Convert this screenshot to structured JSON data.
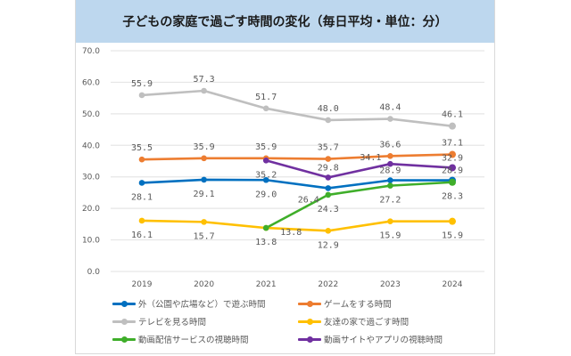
{
  "chart_data": {
    "type": "line",
    "title": "子どもの家庭で過ごす時間の変化（毎日平均・単位：分）",
    "xlabel": "",
    "ylabel": "",
    "categories": [
      "2019",
      "2020",
      "2021",
      "2022",
      "2023",
      "2024"
    ],
    "ylim": [
      0,
      70
    ],
    "yticks": [
      "0.0",
      "10.0",
      "20.0",
      "30.0",
      "40.0",
      "50.0",
      "60.0",
      "70.0"
    ],
    "grid": true,
    "legend_position": "bottom",
    "series": [
      {
        "name": "外（公園や広場など）で遊ぶ時間",
        "color": "#0070c0",
        "values": [
          28.1,
          29.1,
          29.0,
          26.4,
          28.9,
          28.9
        ],
        "labels": [
          "28.1",
          "29.1",
          "29.0",
          "26.4",
          "28.9",
          "28.9"
        ]
      },
      {
        "name": "ゲームをする時間",
        "color": "#ed7d31",
        "values": [
          35.5,
          35.9,
          35.9,
          35.7,
          36.6,
          37.1
        ],
        "labels": [
          "35.5",
          "35.9",
          "35.9",
          "35.7",
          "36.6",
          "37.1"
        ]
      },
      {
        "name": "テレビを見る時間",
        "color": "#bfbfbf",
        "values": [
          55.9,
          57.3,
          51.7,
          48.0,
          48.4,
          46.1
        ],
        "labels": [
          "55.9",
          "57.3",
          "51.7",
          "48.0",
          "48.4",
          "46.1"
        ]
      },
      {
        "name": "友達の家で過ごす時間",
        "color": "#ffc000",
        "values": [
          16.1,
          15.7,
          13.8,
          12.9,
          15.9,
          15.9
        ],
        "labels": [
          "16.1",
          "15.7",
          "13.8",
          "12.9",
          "15.9",
          "15.9"
        ]
      },
      {
        "name": "動画配信サービスの視聴時間",
        "color": "#3fae2a",
        "values": [
          null,
          null,
          13.8,
          24.3,
          27.2,
          28.3
        ],
        "labels": [
          null,
          null,
          "13.8",
          "24.3",
          "27.2",
          "28.3"
        ]
      },
      {
        "name": "動画サイトやアプリの視聴時間",
        "color": "#7030a0",
        "values": [
          null,
          null,
          35.2,
          29.8,
          34.1,
          32.9
        ],
        "labels": [
          null,
          null,
          "35.2",
          "29.8",
          "34.1",
          "32.9"
        ]
      }
    ]
  }
}
